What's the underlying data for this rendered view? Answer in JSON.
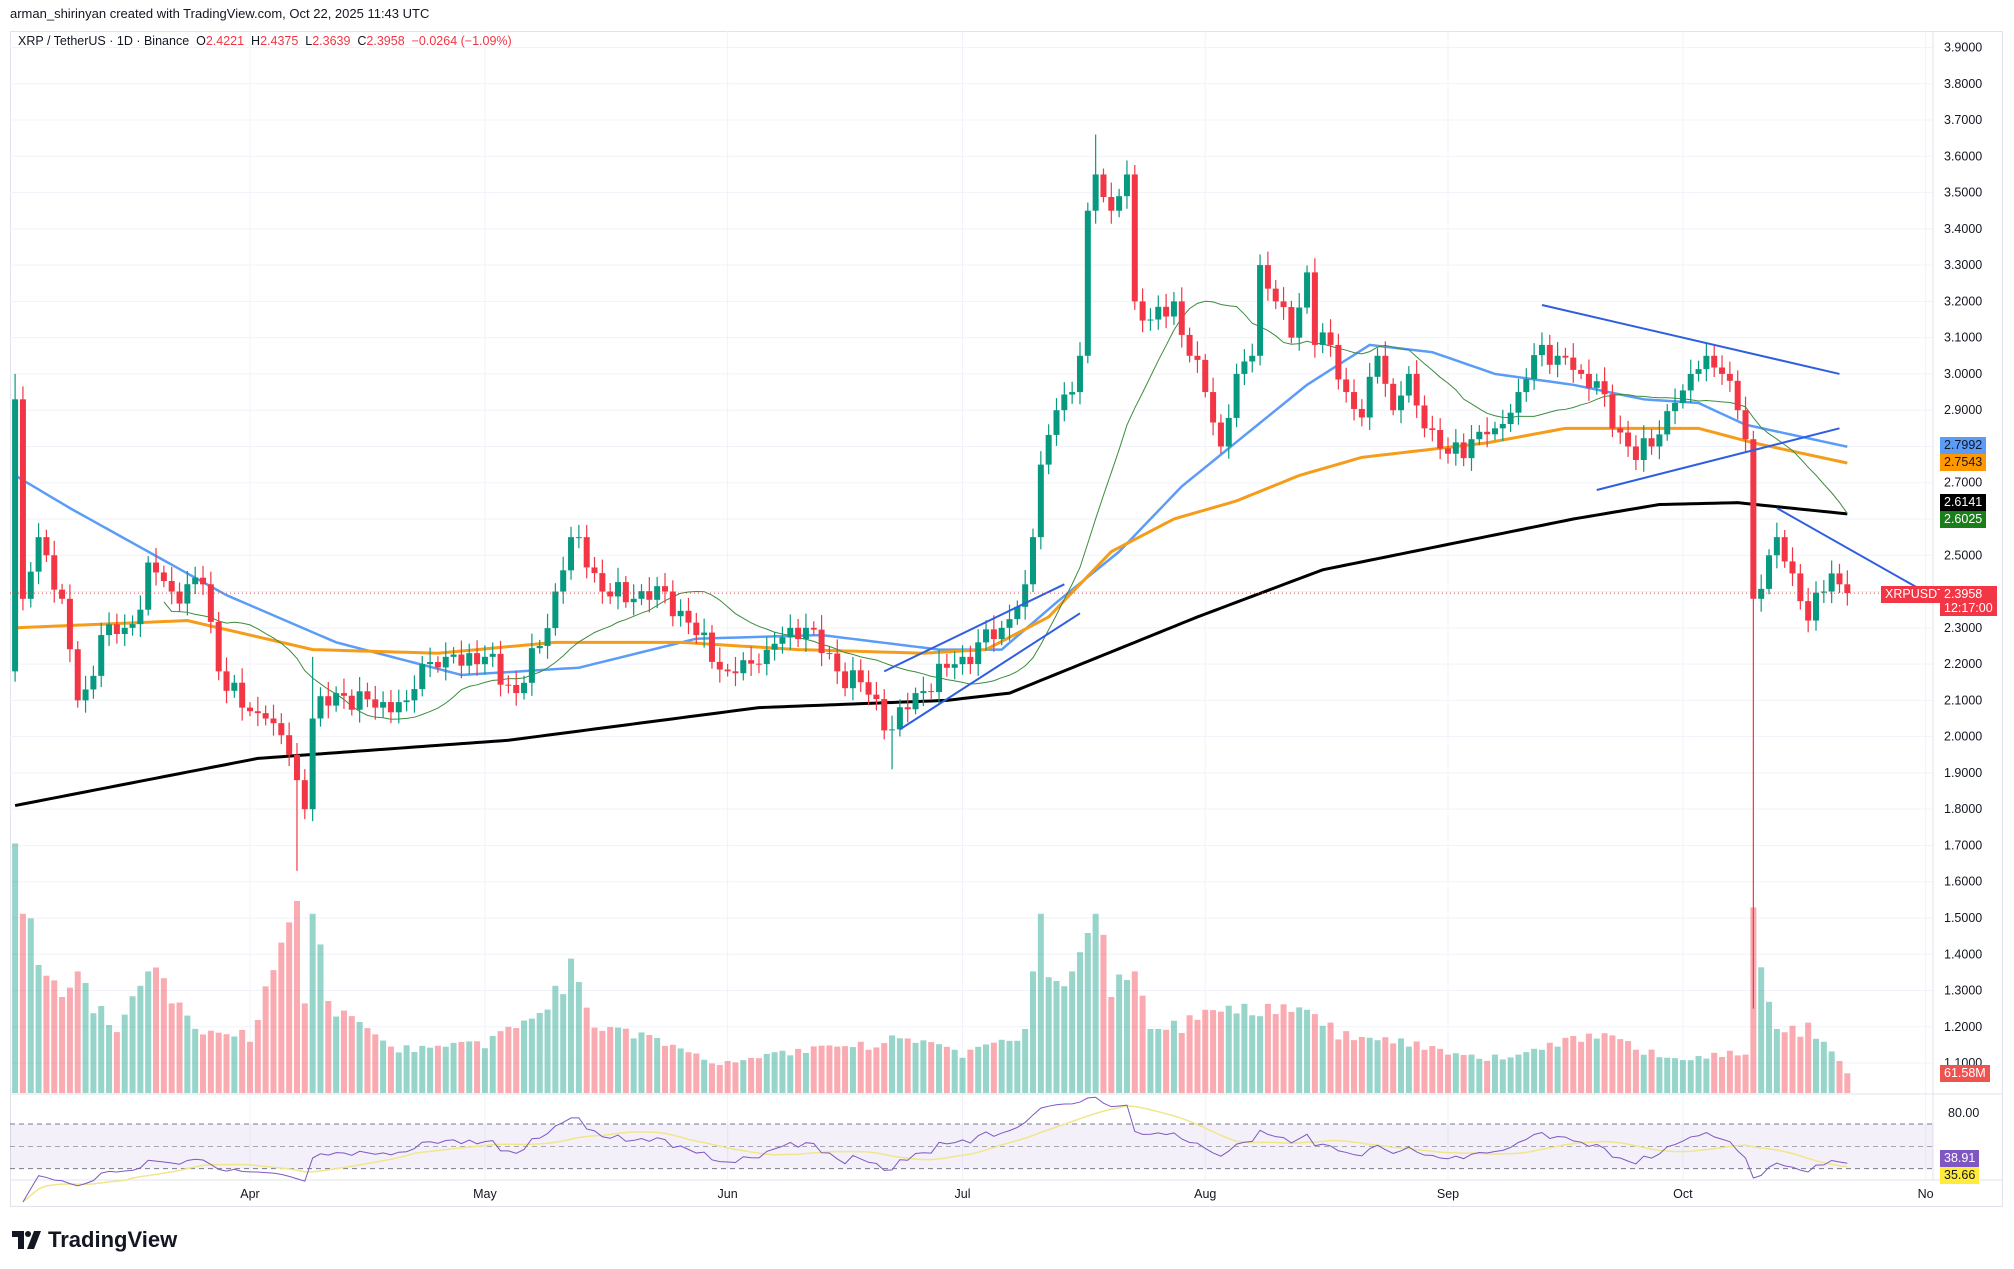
{
  "credit": "arman_shirinyan created with TradingView.com, Oct 22, 2025 11:43 UTC",
  "legend": {
    "symbol": "XRP / TetherUS · 1D · Binance",
    "o_label": "O",
    "o": "2.4221",
    "h_label": "H",
    "h": "2.4375",
    "l_label": "L",
    "l": "2.3639",
    "c_label": "C",
    "c": "2.3958",
    "change": "−0.0264 (−1.09%)"
  },
  "logo": {
    "text": "TradingView"
  },
  "tags": {
    "ma50": {
      "value": "2.7992",
      "color": "#5b9cf6"
    },
    "ma100": {
      "value": "2.7543",
      "color": "#ff9800"
    },
    "ma200": {
      "value": "2.6141",
      "color": "#000000"
    },
    "ma20": {
      "value": "2.6025",
      "color": "#1a7f1a"
    },
    "symbol": "XRPUSDT",
    "last": "2.3958",
    "countdown": "12:17:00",
    "volume": "61.58M",
    "rsi": "38.91",
    "rsi_ma": "35.66",
    "rsi_level": "80.00"
  },
  "colors": {
    "up": "#089981",
    "down": "#f23645",
    "ma20": "#3d8b3d",
    "ma50": "#5b9cf6",
    "ma100": "#f59c1a",
    "ma200": "#000000",
    "trend": "#2f5fe0",
    "rsi": "#7e57c2",
    "rsi_ma": "#f0e68c"
  },
  "chart_data": {
    "type": "candlestick",
    "title": "XRP / TetherUS · 1D · Binance",
    "xlabel": "",
    "ylabel": "",
    "ylim": [
      1.1,
      3.9
    ],
    "y_ticks": [
      "3.9000",
      "3.8000",
      "3.7000",
      "3.6000",
      "3.5000",
      "3.4000",
      "3.3000",
      "3.2000",
      "3.1000",
      "3.0000",
      "2.9000",
      "2.8000",
      "2.7000",
      "2.5000",
      "2.3000",
      "2.2000",
      "2.1000",
      "2.0000",
      "1.9000",
      "1.8000",
      "1.7000",
      "1.6000",
      "1.5000",
      "1.4000",
      "1.3000",
      "1.2000",
      "1.1000"
    ],
    "x_ticks": [
      {
        "label": "Apr",
        "date": "04-01"
      },
      {
        "label": "May",
        "date": "05-01"
      },
      {
        "label": "Jun",
        "date": "06-01"
      },
      {
        "label": "Jul",
        "date": "07-01"
      },
      {
        "label": "Aug",
        "date": "08-01"
      },
      {
        "label": "Sep",
        "date": "09-01"
      },
      {
        "label": "Oct",
        "date": "10-01"
      },
      {
        "label": "No",
        "date": "11-01"
      }
    ],
    "first_open": 2.18,
    "start": "03-02",
    "end": "10-22",
    "close_keypoints": [
      [
        "03-02",
        2.93
      ],
      [
        "03-03",
        2.38
      ],
      [
        "03-05",
        2.55
      ],
      [
        "03-06",
        2.5
      ],
      [
        "03-08",
        2.38
      ],
      [
        "03-10",
        2.1
      ],
      [
        "03-11",
        2.13
      ],
      [
        "03-13",
        2.28
      ],
      [
        "03-16",
        2.3
      ],
      [
        "03-18",
        2.35
      ],
      [
        "03-19",
        2.48
      ],
      [
        "03-22",
        2.4
      ],
      [
        "03-26",
        2.42
      ],
      [
        "03-28",
        2.18
      ],
      [
        "03-31",
        2.08
      ],
      [
        "04-03",
        2.05
      ],
      [
        "04-06",
        1.95
      ],
      [
        "04-07",
        1.88
      ],
      [
        "04-08",
        1.8
      ],
      [
        "04-09",
        2.05
      ],
      [
        "04-12",
        2.12
      ],
      [
        "04-17",
        2.08
      ],
      [
        "04-21",
        2.1
      ],
      [
        "04-23",
        2.2
      ],
      [
        "04-26",
        2.22
      ],
      [
        "05-01",
        2.22
      ],
      [
        "05-05",
        2.12
      ],
      [
        "05-08",
        2.25
      ],
      [
        "05-10",
        2.4
      ],
      [
        "05-12",
        2.55
      ],
      [
        "05-13",
        2.55
      ],
      [
        "05-16",
        2.4
      ],
      [
        "05-20",
        2.38
      ],
      [
        "05-24",
        2.4
      ],
      [
        "05-28",
        2.28
      ],
      [
        "06-01",
        2.18
      ],
      [
        "06-05",
        2.2
      ],
      [
        "06-09",
        2.3
      ],
      [
        "06-11",
        2.3
      ],
      [
        "06-15",
        2.18
      ],
      [
        "06-18",
        2.15
      ],
      [
        "06-22",
        2.02
      ],
      [
        "06-25",
        2.12
      ],
      [
        "07-01",
        2.22
      ],
      [
        "07-06",
        2.3
      ],
      [
        "07-09",
        2.42
      ],
      [
        "07-10",
        2.55
      ],
      [
        "07-11",
        2.75
      ],
      [
        "07-13",
        2.9
      ],
      [
        "07-15",
        2.95
      ],
      [
        "07-16",
        3.05
      ],
      [
        "07-17",
        3.45
      ],
      [
        "07-18",
        3.55
      ],
      [
        "07-20",
        3.45
      ],
      [
        "07-22",
        3.55
      ],
      [
        "07-23",
        3.2
      ],
      [
        "07-25",
        3.15
      ],
      [
        "07-28",
        3.2
      ],
      [
        "07-30",
        3.05
      ],
      [
        "08-01",
        2.95
      ],
      [
        "08-03",
        2.8
      ],
      [
        "08-05",
        3.0
      ],
      [
        "08-07",
        3.05
      ],
      [
        "08-08",
        3.3
      ],
      [
        "08-10",
        3.2
      ],
      [
        "08-12",
        3.1
      ],
      [
        "08-14",
        3.28
      ],
      [
        "08-15",
        3.08
      ],
      [
        "08-17",
        3.08
      ],
      [
        "08-19",
        2.95
      ],
      [
        "08-21",
        2.88
      ],
      [
        "08-23",
        3.05
      ],
      [
        "08-25",
        2.9
      ],
      [
        "08-27",
        3.0
      ],
      [
        "08-29",
        2.85
      ],
      [
        "09-01",
        2.78
      ],
      [
        "09-04",
        2.82
      ],
      [
        "09-07",
        2.85
      ],
      [
        "09-10",
        2.95
      ],
      [
        "09-13",
        3.08
      ],
      [
        "09-15",
        3.05
      ],
      [
        "09-18",
        3.0
      ],
      [
        "09-20",
        2.98
      ],
      [
        "09-22",
        2.85
      ],
      [
        "09-24",
        2.8
      ],
      [
        "09-27",
        2.8
      ],
      [
        "09-30",
        2.92
      ],
      [
        "10-02",
        3.0
      ],
      [
        "10-04",
        3.05
      ],
      [
        "10-06",
        3.0
      ],
      [
        "10-08",
        2.9
      ],
      [
        "10-09",
        2.82
      ],
      [
        "10-10",
        2.38
      ],
      [
        "10-12",
        2.5
      ],
      [
        "10-13",
        2.55
      ],
      [
        "10-15",
        2.45
      ],
      [
        "10-17",
        2.32
      ],
      [
        "10-19",
        2.4
      ],
      [
        "10-20",
        2.45
      ],
      [
        "10-21",
        2.42
      ],
      [
        "10-22",
        2.3958
      ]
    ],
    "extremes": [
      {
        "date": "04-07",
        "low": 1.63
      },
      {
        "date": "04-09",
        "high": 2.22
      },
      {
        "date": "06-22",
        "low": 1.91
      },
      {
        "date": "07-18",
        "high": 3.66
      },
      {
        "date": "10-10",
        "low": 1.25
      },
      {
        "date": "03-02",
        "high": 3.0
      }
    ],
    "ma_series": [
      {
        "name": "MA 50",
        "key": "ma50",
        "points": [
          [
            "03-02",
            2.72
          ],
          [
            "03-09",
            2.63
          ],
          [
            "03-19",
            2.51
          ],
          [
            "03-29",
            2.39
          ],
          [
            "04-12",
            2.26
          ],
          [
            "04-28",
            2.17
          ],
          [
            "05-13",
            2.19
          ],
          [
            "05-28",
            2.27
          ],
          [
            "06-13",
            2.28
          ],
          [
            "06-28",
            2.24
          ],
          [
            "07-06",
            2.24
          ],
          [
            "07-13",
            2.37
          ],
          [
            "07-21",
            2.51
          ],
          [
            "07-29",
            2.69
          ],
          [
            "08-14",
            2.97
          ],
          [
            "08-22",
            3.08
          ],
          [
            "08-30",
            3.06
          ],
          [
            "09-07",
            3.0
          ],
          [
            "09-17",
            2.97
          ],
          [
            "09-26",
            2.93
          ],
          [
            "10-03",
            2.92
          ],
          [
            "10-09",
            2.86
          ],
          [
            "10-22",
            2.7992
          ]
        ]
      },
      {
        "name": "MA 100",
        "key": "ma100",
        "points": [
          [
            "03-02",
            2.3
          ],
          [
            "03-24",
            2.32
          ],
          [
            "04-09",
            2.24
          ],
          [
            "04-25",
            2.23
          ],
          [
            "05-10",
            2.26
          ],
          [
            "05-26",
            2.26
          ],
          [
            "06-10",
            2.24
          ],
          [
            "06-26",
            2.23
          ],
          [
            "07-04",
            2.24
          ],
          [
            "07-12",
            2.33
          ],
          [
            "07-20",
            2.51
          ],
          [
            "07-28",
            2.6
          ],
          [
            "08-05",
            2.65
          ],
          [
            "08-13",
            2.72
          ],
          [
            "08-21",
            2.77
          ],
          [
            "08-29",
            2.79
          ],
          [
            "09-06",
            2.81
          ],
          [
            "09-16",
            2.85
          ],
          [
            "09-26",
            2.85
          ],
          [
            "10-03",
            2.85
          ],
          [
            "10-10",
            2.81
          ],
          [
            "10-22",
            2.7543
          ]
        ]
      },
      {
        "name": "MA 200",
        "key": "ma200",
        "points": [
          [
            "03-02",
            1.81
          ],
          [
            "04-02",
            1.94
          ],
          [
            "05-04",
            1.99
          ],
          [
            "06-05",
            2.08
          ],
          [
            "06-29",
            2.1
          ],
          [
            "07-07",
            2.12
          ],
          [
            "07-15",
            2.19
          ],
          [
            "07-31",
            2.33
          ],
          [
            "08-16",
            2.46
          ],
          [
            "09-01",
            2.53
          ],
          [
            "09-17",
            2.6
          ],
          [
            "09-28",
            2.64
          ],
          [
            "10-08",
            2.645
          ],
          [
            "10-22",
            2.6141
          ]
        ]
      }
    ],
    "ma20_period": 20,
    "trendlines": [
      [
        [
          "06-21",
          2.18
        ],
        [
          "07-14",
          2.42
        ]
      ],
      [
        [
          "06-23",
          2.02
        ],
        [
          "07-16",
          2.34
        ]
      ],
      [
        [
          "09-13",
          3.19
        ],
        [
          "10-21",
          3.0
        ]
      ],
      [
        [
          "09-20",
          2.68
        ],
        [
          "10-21",
          2.85
        ]
      ],
      [
        [
          "10-13",
          2.63
        ],
        [
          "10-31",
          2.41
        ]
      ]
    ],
    "volume_keypoints_M": [
      [
        "03-02",
        780
      ],
      [
        "03-03",
        560
      ],
      [
        "03-05",
        400
      ],
      [
        "03-08",
        300
      ],
      [
        "03-10",
        380
      ],
      [
        "03-15",
        200
      ],
      [
        "03-19",
        380
      ],
      [
        "03-25",
        180
      ],
      [
        "04-01",
        200
      ],
      [
        "04-07",
        600
      ],
      [
        "04-08",
        280
      ],
      [
        "04-09",
        560
      ],
      [
        "04-11",
        250
      ],
      [
        "04-20",
        150
      ],
      [
        "05-01",
        140
      ],
      [
        "05-08",
        250
      ],
      [
        "05-12",
        420
      ],
      [
        "05-15",
        200
      ],
      [
        "06-01",
        100
      ],
      [
        "06-10",
        120
      ],
      [
        "06-22",
        180
      ],
      [
        "07-01",
        110
      ],
      [
        "07-09",
        200
      ],
      [
        "07-11",
        560
      ],
      [
        "07-12",
        380
      ],
      [
        "07-14",
        320
      ],
      [
        "07-18",
        560
      ],
      [
        "07-20",
        300
      ],
      [
        "07-23",
        380
      ],
      [
        "07-25",
        200
      ],
      [
        "08-01",
        260
      ],
      [
        "08-08",
        240
      ],
      [
        "08-14",
        260
      ],
      [
        "08-20",
        180
      ],
      [
        "09-01",
        120
      ],
      [
        "09-10",
        120
      ],
      [
        "09-22",
        180
      ],
      [
        "10-01",
        100
      ],
      [
        "10-09",
        120
      ],
      [
        "10-10",
        580
      ],
      [
        "10-11",
        370
      ],
      [
        "10-13",
        200
      ],
      [
        "10-17",
        220
      ],
      [
        "10-21",
        100
      ],
      [
        "10-22",
        61.58
      ]
    ],
    "rsi": {
      "period": 14,
      "ma_period": 14,
      "levels": [
        70,
        50,
        30
      ],
      "upper_label": 80
    }
  }
}
